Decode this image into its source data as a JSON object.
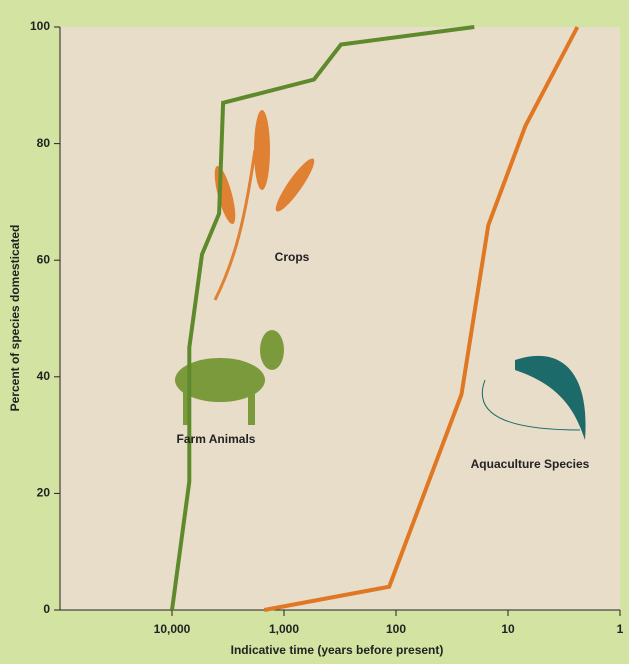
{
  "chart_data": {
    "type": "line",
    "x_label": "Indicative time (years before present)",
    "y_label": "Percent of species domesticated",
    "xlim": [
      100000,
      1
    ],
    "xlog": true,
    "xticks": [
      {
        "value": 10000,
        "label": "10,000"
      },
      {
        "value": 1000,
        "label": "1,000"
      },
      100,
      10,
      1
    ],
    "ylim": [
      0,
      100
    ],
    "yticks": [
      0,
      20,
      40,
      60,
      80,
      100
    ],
    "series": [
      {
        "color": "#5e8a2c",
        "x": [
          10000,
          7000,
          7000,
          5400,
          3800,
          3500,
          540,
          310,
          20
        ],
        "values": [
          0,
          22,
          45,
          61,
          68,
          87,
          91,
          97,
          100
        ]
      },
      {
        "color": "#e07722",
        "x": [
          1500,
          115,
          26,
          15,
          7,
          2.4
        ],
        "values": [
          0,
          4,
          37,
          66,
          83,
          100
        ]
      }
    ],
    "annotations": [
      "Crops",
      "Farm Animals",
      "Aquaculture Species"
    ]
  }
}
